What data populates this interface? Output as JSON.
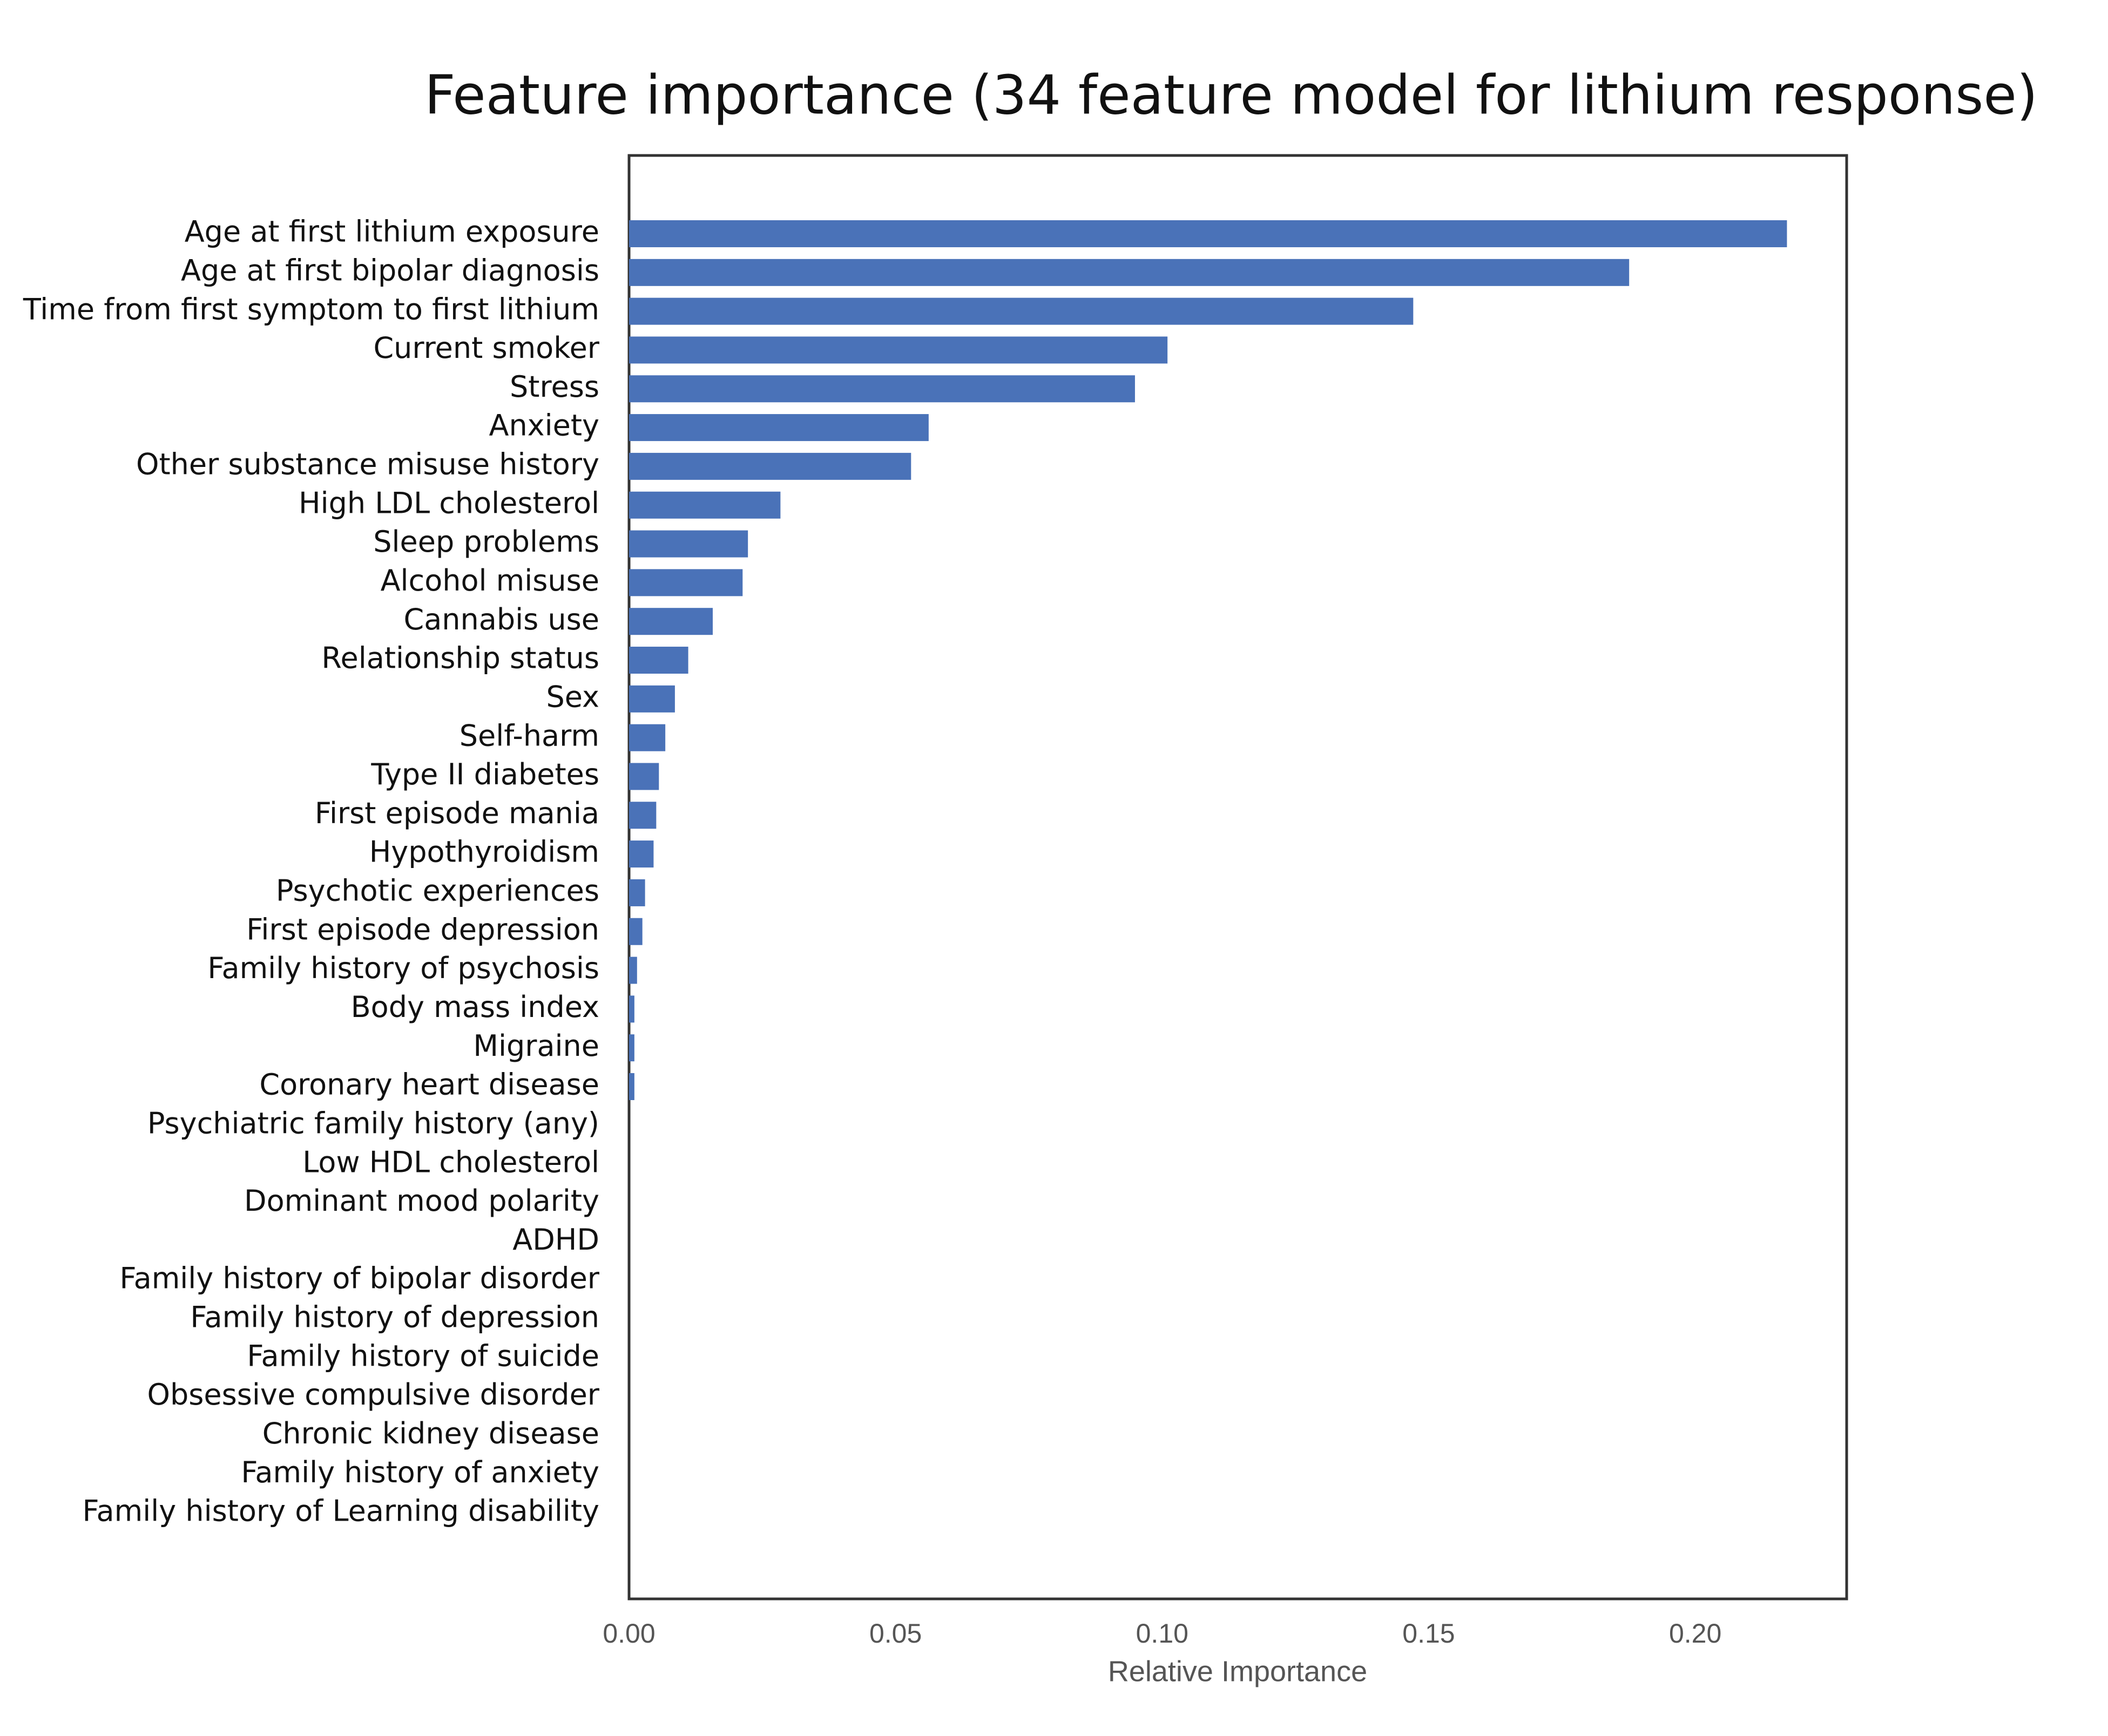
{
  "chart_data": {
    "type": "barh",
    "title": "Feature importance (34 feature model for lithium response)",
    "xlabel": "Relative Importance",
    "categories": [
      "Age at first lithium exposure",
      "Age at first bipolar diagnosis",
      "Time from first symptom to first lithium",
      "Current smoker",
      "Stress",
      "Anxiety",
      "Other substance misuse history",
      "High LDL cholesterol",
      "Sleep problems",
      "Alcohol misuse",
      "Cannabis use",
      "Relationship status",
      "Sex",
      "Self-harm",
      "Type II diabetes",
      "First episode mania",
      "Hypothyroidism",
      "Psychotic experiences",
      "First episode depression",
      "Family history of psychosis",
      "Body mass index",
      "Migraine",
      "Coronary heart disease",
      "Psychiatric family history (any)",
      "Low HDL cholesterol",
      "Dominant mood polarity",
      "ADHD",
      "Family history of bipolar disorder",
      "Family history of depression",
      "Family history of suicide",
      "Obsessive compulsive disorder",
      "Chronic kidney disease",
      "Family history of anxiety",
      "Family history of Learning disability"
    ],
    "values": [
      0.2172,
      0.1876,
      0.1471,
      0.101,
      0.0949,
      0.0562,
      0.0529,
      0.0284,
      0.0223,
      0.0213,
      0.0157,
      0.0111,
      0.0086,
      0.0068,
      0.0056,
      0.0051,
      0.0046,
      0.003,
      0.0025,
      0.0015,
      0.001,
      0.001,
      0.001,
      0,
      0,
      0,
      0,
      0,
      0,
      0,
      0,
      0,
      0,
      0
    ],
    "color": "#4a72b8",
    "xlim": [
      0,
      0.2284
    ],
    "xticks": [
      {
        "value": 0,
        "label": "0.00"
      },
      0.05,
      {
        "value": 0.1,
        "label": "0.10"
      },
      0.15,
      {
        "value": 0.2,
        "label": "0.20"
      }
    ],
    "grid": false
  }
}
